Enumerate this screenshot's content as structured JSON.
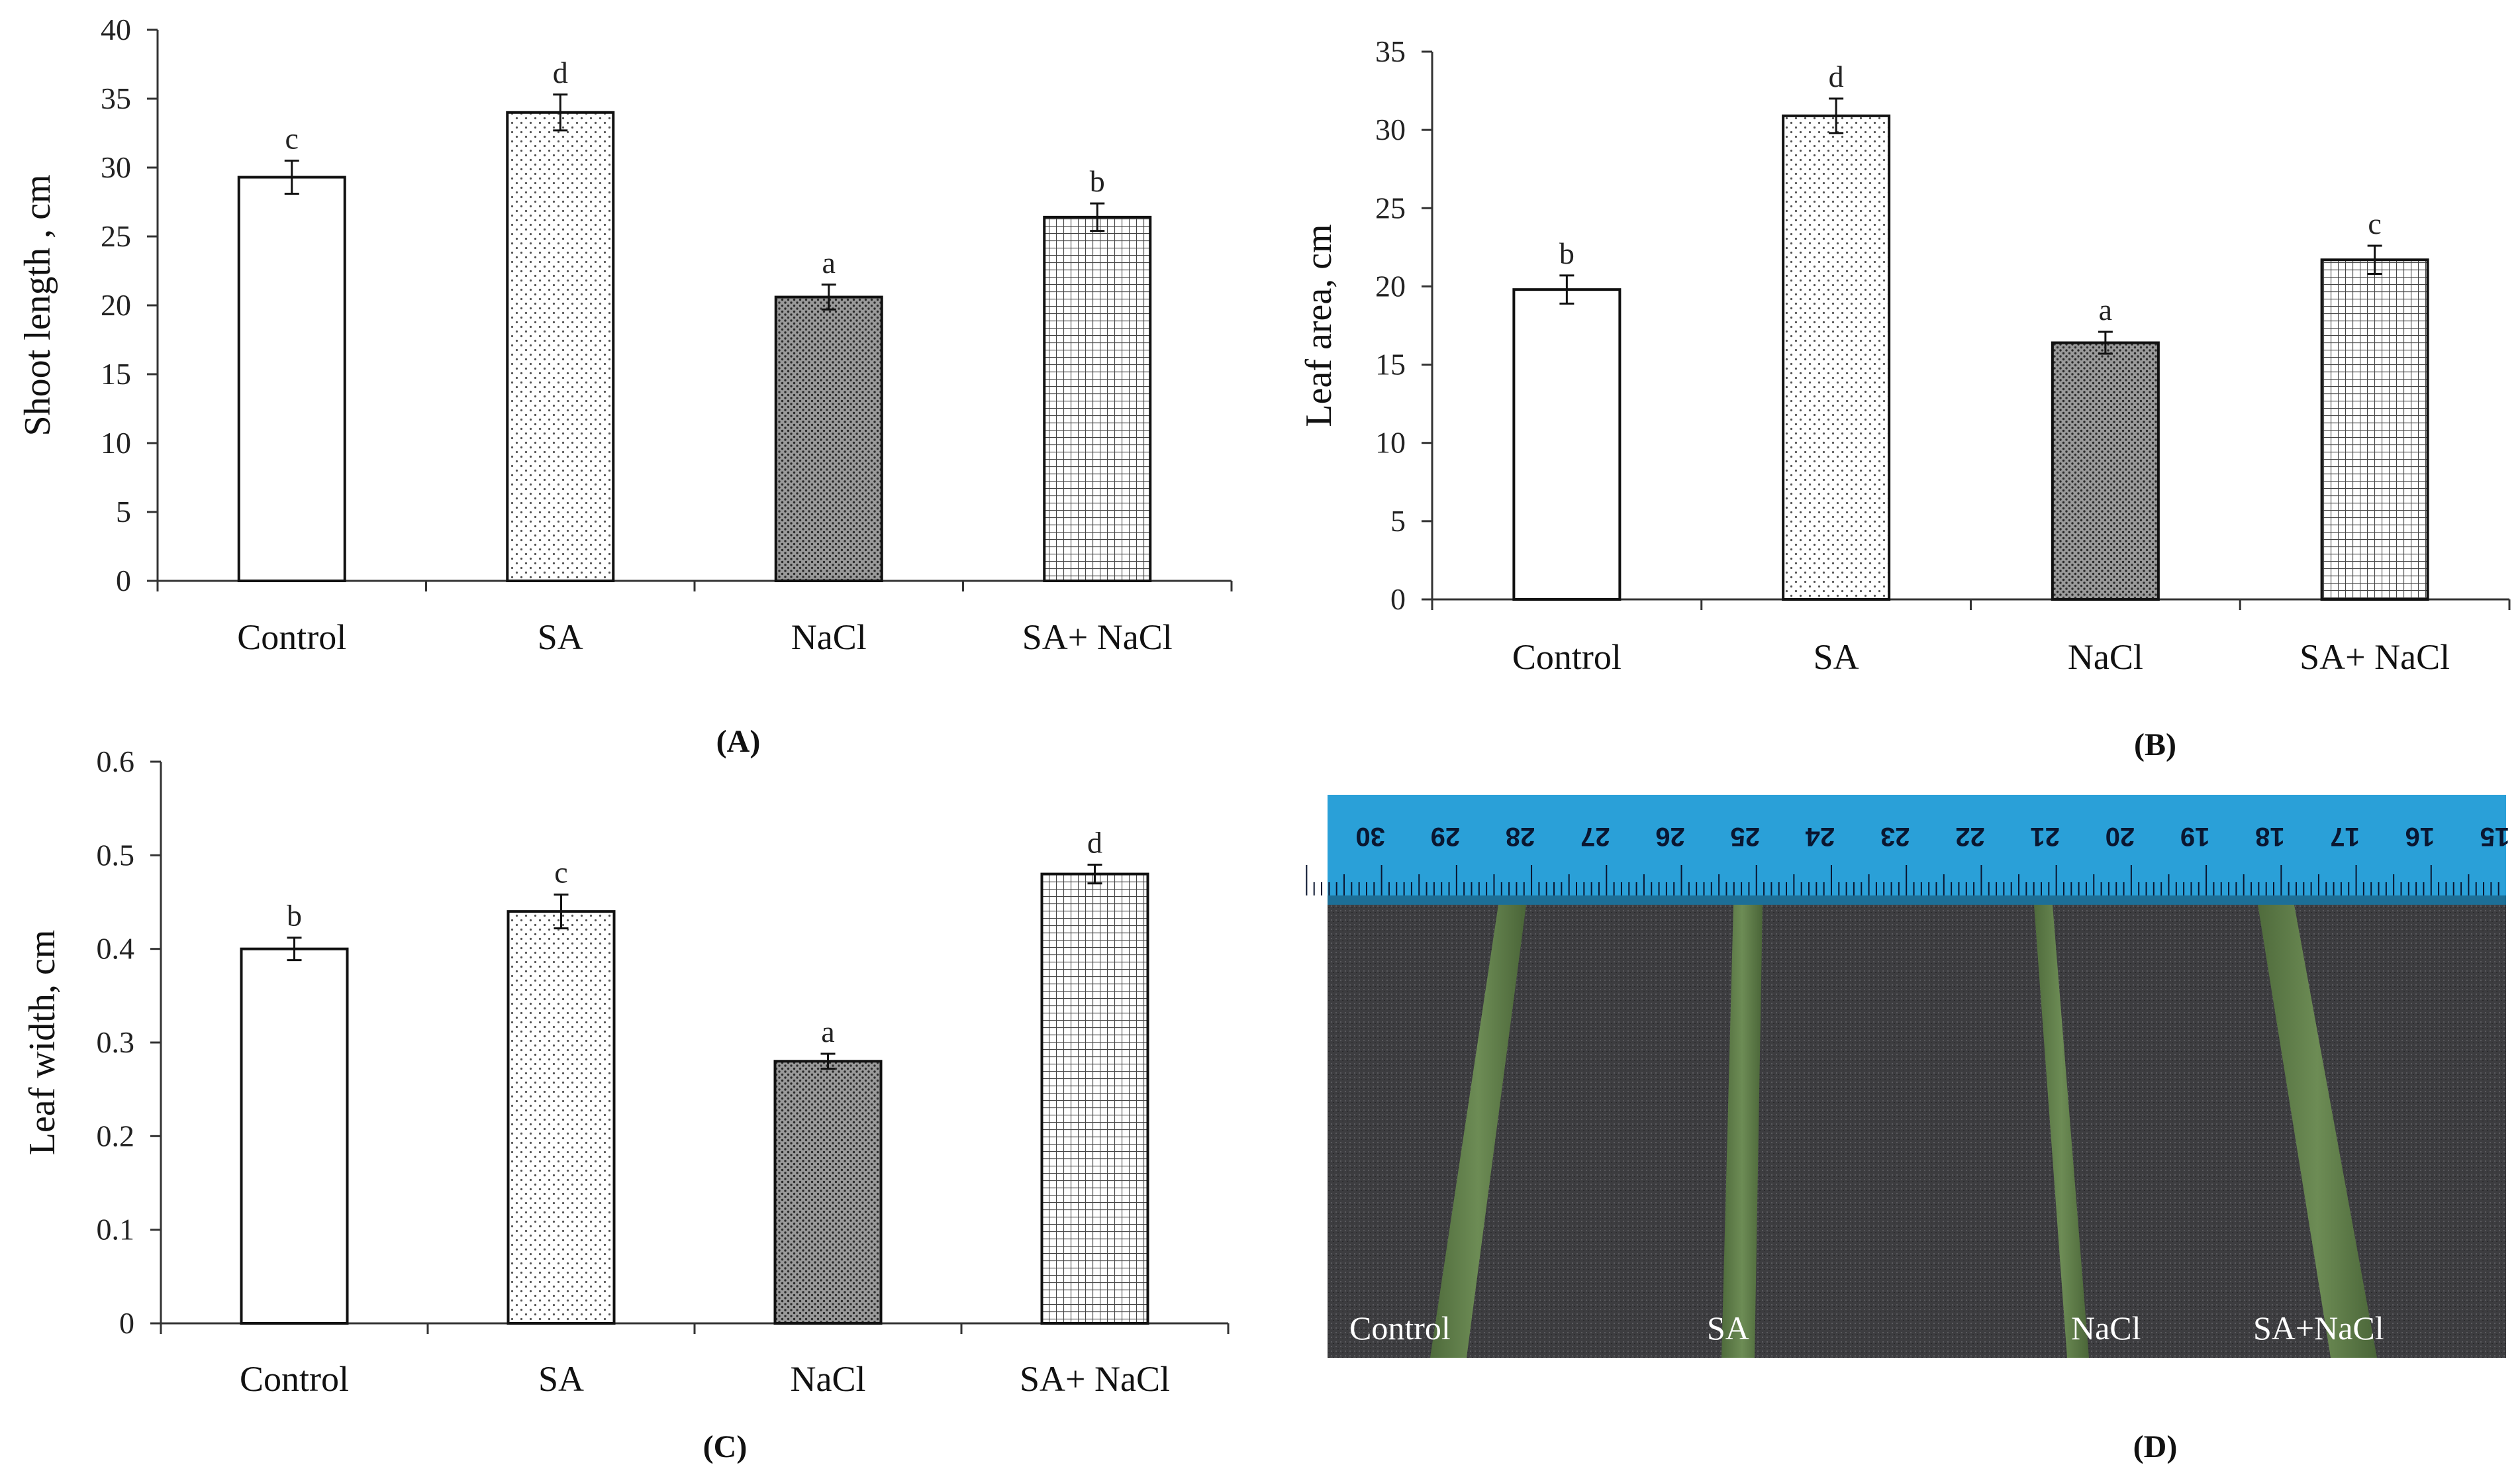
{
  "chart_data": [
    {
      "id": "A",
      "type": "bar",
      "panel_label": "(A)",
      "ylabel": "Shoot length , cm",
      "categories": [
        "Control",
        "SA",
        "NaCl",
        "SA+ NaCl"
      ],
      "values": [
        29.3,
        34.0,
        20.6,
        26.4
      ],
      "errors": [
        1.2,
        1.3,
        0.9,
        1.0
      ],
      "significance": [
        "c",
        "d",
        "a",
        "b"
      ],
      "yticks": [
        "0",
        "5",
        "10",
        "15",
        "20",
        "25",
        "30",
        "35",
        "40"
      ],
      "ylim": [
        0,
        40
      ],
      "patterns": [
        "white",
        "sparse-dots",
        "dense-dots",
        "grid"
      ]
    },
    {
      "id": "B",
      "type": "bar",
      "panel_label": "(B)",
      "ylabel": "Leaf area, cm",
      "categories": [
        "Control",
        "SA",
        "NaCl",
        "SA+ NaCl"
      ],
      "values": [
        19.8,
        30.9,
        16.4,
        21.7
      ],
      "errors": [
        0.9,
        1.1,
        0.7,
        0.9
      ],
      "significance": [
        "b",
        "d",
        "a",
        "c"
      ],
      "yticks": [
        "0",
        "5",
        "10",
        "15",
        "20",
        "25",
        "30",
        "35"
      ],
      "ylim": [
        0,
        35
      ],
      "patterns": [
        "white",
        "sparse-dots",
        "dense-dots",
        "grid"
      ]
    },
    {
      "id": "C",
      "type": "bar",
      "panel_label": "(C)",
      "ylabel": "Leaf width, cm",
      "categories": [
        "Control",
        "SA",
        "NaCl",
        "SA+ NaCl"
      ],
      "values": [
        0.4,
        0.44,
        0.28,
        0.48
      ],
      "errors": [
        0.012,
        0.018,
        0.008,
        0.01
      ],
      "significance": [
        "b",
        "c",
        "a",
        "d"
      ],
      "yticks": [
        "0",
        "0.1",
        "0.2",
        "0.3",
        "0.4",
        "0.5",
        "0.6"
      ],
      "ylim": [
        0,
        0.6
      ],
      "patterns": [
        "white",
        "sparse-dots",
        "dense-dots",
        "grid"
      ]
    }
  ],
  "photo": {
    "panel_label": "(D)",
    "labels": [
      "Control",
      "SA",
      "NaCl",
      "SA+NaCl"
    ],
    "ruler_numbers": [
      "30",
      "29",
      "28",
      "27",
      "26",
      "25",
      "24",
      "23",
      "22",
      "21",
      "20",
      "19",
      "18",
      "17",
      "16",
      "15"
    ],
    "colors": {
      "ruler": "#2aa0d8",
      "background": "#3a3a3c",
      "leaf": "#5c7a48"
    }
  }
}
